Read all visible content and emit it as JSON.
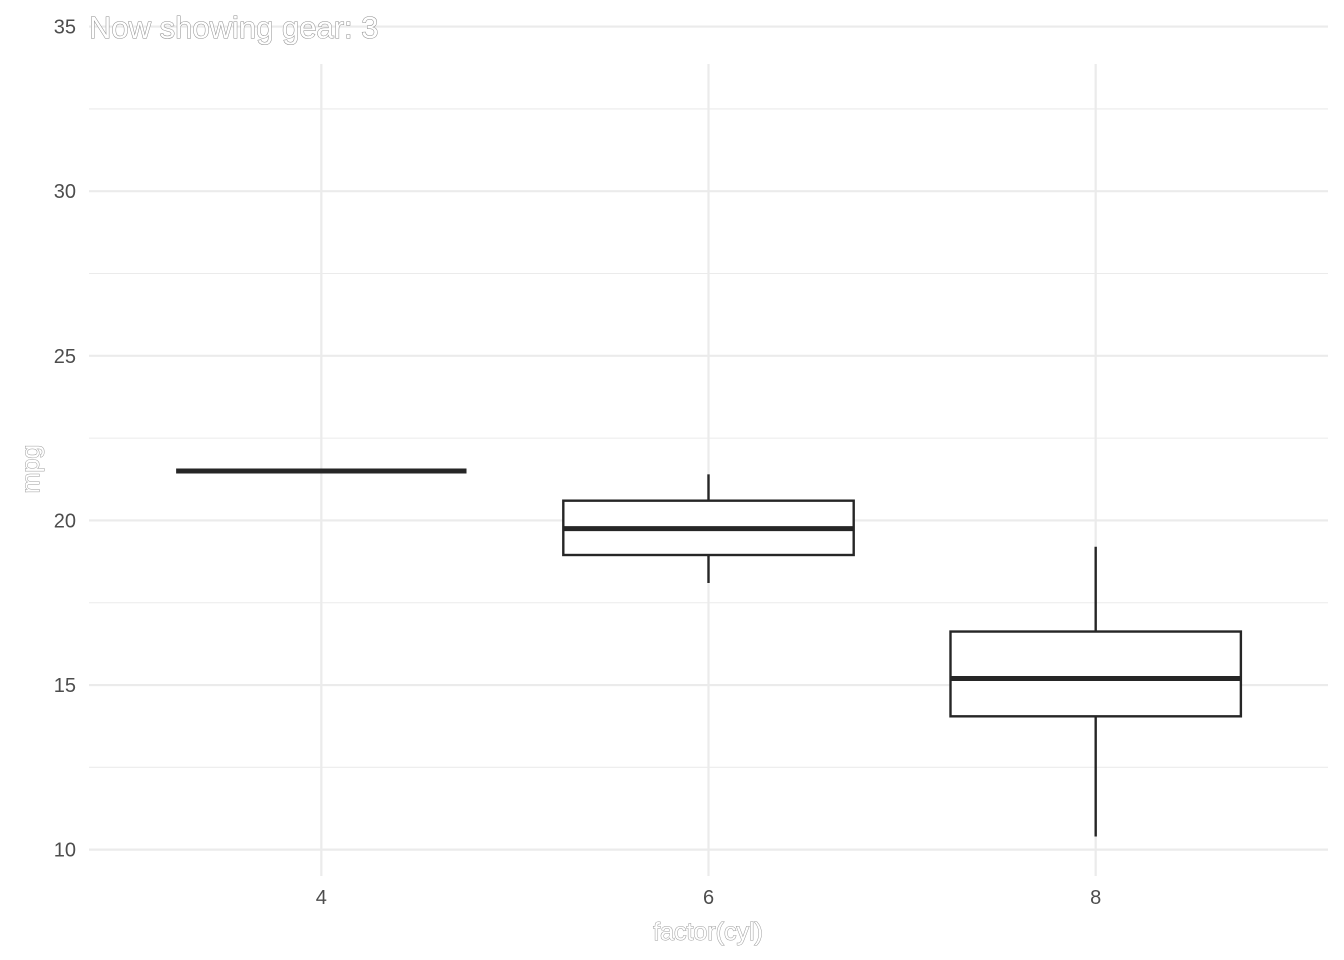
{
  "chart_data": {
    "type": "boxplot",
    "title": "Now showing gear: 3",
    "xlabel": "factor(cyl)",
    "ylabel": "mpg",
    "categories": [
      "4",
      "6",
      "8"
    ],
    "ylim": [
      9.2,
      35.2
    ],
    "y_ticks": [
      10,
      15,
      20,
      25,
      30,
      35
    ],
    "y_tick_labels": [
      "10",
      "15",
      "20",
      "25",
      "30",
      "35"
    ],
    "grid": true,
    "boxes": [
      {
        "category": "4",
        "min": 21.5,
        "q1": 21.5,
        "median": 21.5,
        "q3": 21.5,
        "max": 21.5
      },
      {
        "category": "6",
        "min": 18.1,
        "q1": 18.95,
        "median": 19.75,
        "q3": 20.6,
        "max": 21.4
      },
      {
        "category": "8",
        "min": 10.4,
        "q1": 14.05,
        "median": 15.2,
        "q3": 16.625,
        "max": 19.2
      }
    ],
    "colors": {
      "box_line": "#262626",
      "box_fill": "#ffffff",
      "grid": "#ebebeb",
      "tick_text": "#4d4d4d"
    }
  }
}
